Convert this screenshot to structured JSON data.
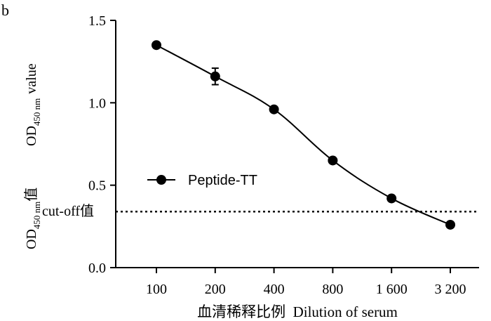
{
  "panel_label": "b",
  "chart_data": {
    "type": "line",
    "categories": [
      "100",
      "200",
      "400",
      "800",
      "1 600",
      "3 200"
    ],
    "series": [
      {
        "name": "Peptide-TT",
        "values": [
          1.35,
          1.16,
          0.96,
          0.65,
          0.42,
          0.26
        ],
        "error": [
          0.0,
          0.05,
          0.0,
          0.0,
          0.0,
          0.0
        ],
        "color": "#000000"
      }
    ],
    "xlabel": "血清稀释比例  Dilution of serum",
    "ylabel": {
      "zh_prefix": "OD",
      "zh_sub": "450 nm",
      "zh_suffix": "值",
      "en_prefix": "OD",
      "en_sub": "450 nm",
      "en_suffix": "value"
    },
    "yticks": [
      "0.0",
      "0.5",
      "1.0",
      "1.5"
    ],
    "ylim": [
      0,
      1.5
    ],
    "cutoff": {
      "label": "cut-off值",
      "value": 0.34
    },
    "legend_position": "center-left",
    "grid": false
  }
}
